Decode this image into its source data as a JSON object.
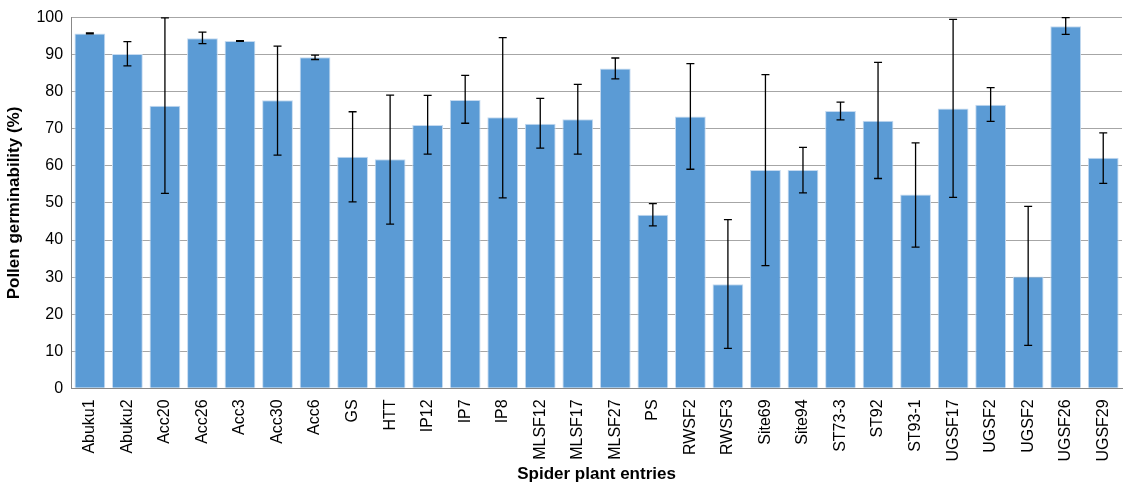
{
  "chart_data": {
    "type": "bar",
    "xlabel": "Spider plant entries",
    "ylabel": "Pollen germinability (%)",
    "categories": [
      "Abuku1",
      "Abuku2",
      "Acc20",
      "Acc26",
      "Acc3",
      "Acc30",
      "Acc6",
      "GS",
      "HTT",
      "IP12",
      "IP7",
      "IP8",
      "MLSF12",
      "MLSF17",
      "MLSF27",
      "PS",
      "RWSF2",
      "RWSF3",
      "Site69",
      "Site94",
      "ST73-3",
      "ST92",
      "ST93-1",
      "UGSF17",
      "UGSF2",
      "UGSF2",
      "UGSF26",
      "UGSF29"
    ],
    "values": [
      95.7,
      90.2,
      76.2,
      94.4,
      93.7,
      77.7,
      89.3,
      62.5,
      61.8,
      71.0,
      77.8,
      73.1,
      71.4,
      72.6,
      86.3,
      46.8,
      73.3,
      28.1,
      58.9,
      58.9,
      74.8,
      72.2,
      52.3,
      75.5,
      76.5,
      30.2,
      97.7,
      62.2
    ],
    "errors": [
      [
        95.6,
        95.9
      ],
      [
        87.0,
        93.5
      ],
      [
        52.6,
        99.9
      ],
      [
        93.0,
        96.1
      ],
      [
        93.6,
        93.8
      ],
      [
        62.9,
        92.3
      ],
      [
        88.7,
        89.9
      ],
      [
        50.3,
        74.6
      ],
      [
        44.3,
        79.1
      ],
      [
        63.2,
        79.0
      ],
      [
        71.5,
        84.4
      ],
      [
        51.4,
        94.6
      ],
      [
        64.8,
        78.2
      ],
      [
        63.2,
        82.0
      ],
      [
        83.5,
        89.1
      ],
      [
        43.8,
        49.8
      ],
      [
        59.1,
        87.6
      ],
      [
        10.8,
        45.5
      ],
      [
        33.1,
        84.6
      ],
      [
        52.7,
        65.0
      ],
      [
        72.4,
        77.2
      ],
      [
        56.6,
        87.9
      ],
      [
        38.1,
        66.2
      ],
      [
        51.5,
        99.5
      ],
      [
        72.0,
        81.1
      ],
      [
        11.6,
        49.1
      ],
      [
        95.5,
        100
      ],
      [
        55.3,
        68.9
      ]
    ],
    "color": "#5b9bd5",
    "ylim": [
      0,
      100
    ],
    "yticks": [
      0,
      10,
      20,
      30,
      40,
      50,
      60,
      70,
      80,
      90,
      100
    ],
    "grid": "y",
    "legend": false
  }
}
